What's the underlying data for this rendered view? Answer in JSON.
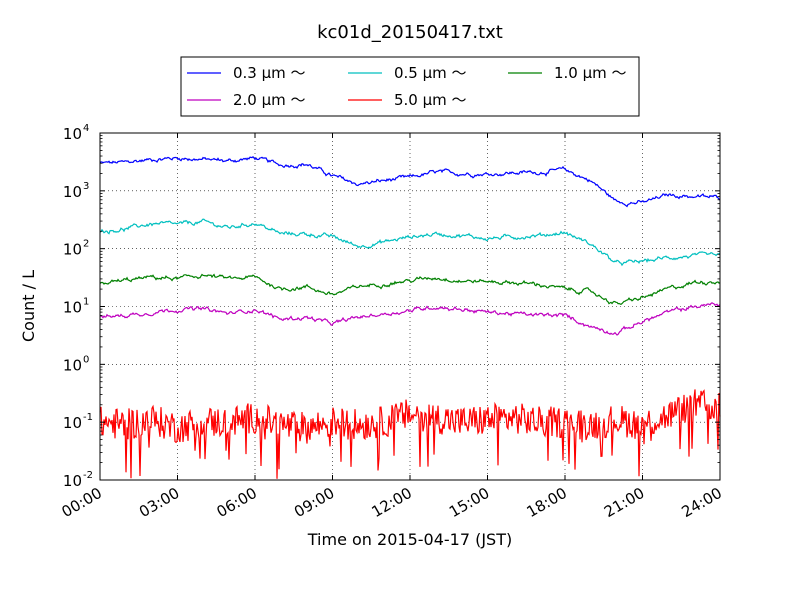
{
  "chart_data": {
    "type": "line",
    "title": "kc01d_20150417.txt",
    "xlabel": "Time on 2015-04-17 (JST)",
    "ylabel": "Count / L",
    "xlim": [
      "00:00",
      "24:00"
    ],
    "ylim": [
      0.01,
      10000
    ],
    "yscale": "log",
    "grid": true,
    "legend_position": "top-center",
    "x_ticks": [
      "00:00",
      "03:00",
      "06:00",
      "09:00",
      "12:00",
      "15:00",
      "18:00",
      "21:00",
      "24:00"
    ],
    "y_ticks": [
      {
        "base": "10",
        "exp": "-2"
      },
      {
        "base": "10",
        "exp": "-1"
      },
      {
        "base": "10",
        "exp": "0"
      },
      {
        "base": "10",
        "exp": "1"
      },
      {
        "base": "10",
        "exp": "2"
      },
      {
        "base": "10",
        "exp": "3"
      },
      {
        "base": "10",
        "exp": "4"
      }
    ],
    "hours": [
      0,
      1,
      2,
      3,
      4,
      5,
      6,
      7,
      8,
      9,
      10,
      11,
      12,
      13,
      14,
      15,
      16,
      17,
      18,
      19,
      20,
      21,
      22,
      23,
      24
    ],
    "series": [
      {
        "name": "0.3 μm ～",
        "color": "#0000ff",
        "values": [
          3000,
          3100,
          3500,
          3700,
          3500,
          3300,
          3700,
          2800,
          2900,
          1800,
          1300,
          1500,
          1700,
          2100,
          2000,
          1950,
          2050,
          2100,
          2300,
          1500,
          650,
          620,
          850,
          800,
          760
        ]
      },
      {
        "name": "0.5 μm ～",
        "color": "#00bfbf",
        "values": [
          200,
          220,
          270,
          260,
          290,
          230,
          280,
          180,
          180,
          160,
          110,
          130,
          160,
          180,
          170,
          150,
          160,
          170,
          190,
          120,
          55,
          60,
          70,
          75,
          75
        ]
      },
      {
        "name": "1.0 μm ～",
        "color": "#008000",
        "values": [
          25,
          28,
          32,
          30,
          35,
          30,
          32,
          20,
          22,
          16,
          22,
          25,
          28,
          32,
          28,
          27,
          26,
          24,
          20,
          18,
          11,
          14,
          20,
          26,
          28
        ]
      },
      {
        "name": "2.0 μm ～",
        "color": "#bf00bf",
        "values": [
          6.5,
          7,
          8,
          9,
          9,
          7.5,
          9,
          6,
          6.5,
          5,
          6.5,
          7.5,
          8.5,
          10,
          9,
          8,
          7.5,
          7,
          7,
          4.5,
          3.5,
          5.5,
          8,
          10,
          11
        ]
      },
      {
        "name": "5.0 μm ～",
        "color": "#ff0000",
        "values": [
          0.1,
          0.09,
          0.11,
          0.08,
          0.1,
          0.1,
          0.12,
          0.09,
          0.08,
          0.1,
          0.09,
          0.1,
          0.14,
          0.12,
          0.1,
          0.11,
          0.12,
          0.1,
          0.1,
          0.09,
          0.11,
          0.09,
          0.13,
          0.2,
          0.18
        ]
      }
    ]
  }
}
